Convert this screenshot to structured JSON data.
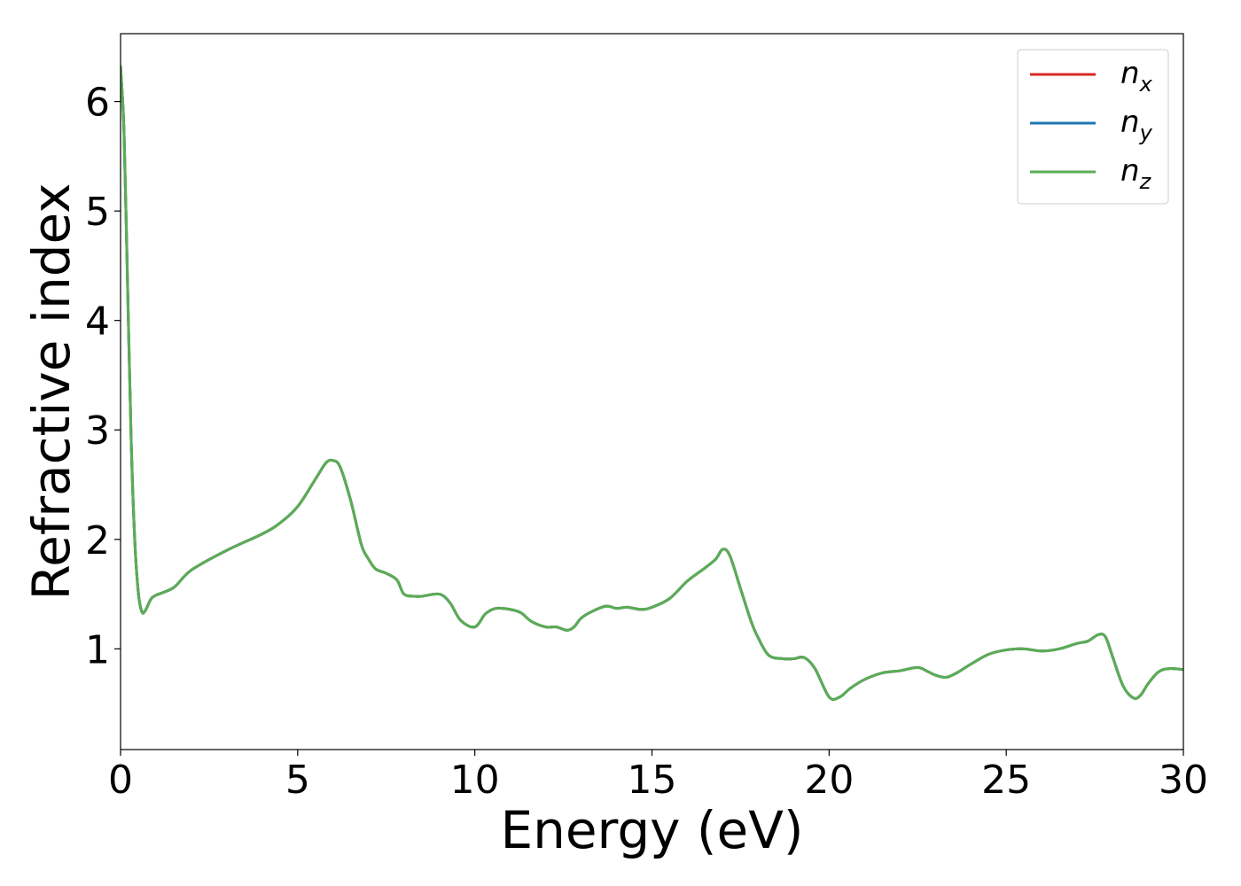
{
  "chart_data": {
    "type": "line",
    "title": "",
    "xlabel": "Energy (eV)",
    "ylabel": "Refractive index",
    "xlim": [
      0,
      30
    ],
    "ylim": [
      0.08,
      6.62
    ],
    "xticks": [
      0,
      5,
      10,
      15,
      20,
      25,
      30
    ],
    "yticks": [
      1,
      2,
      3,
      4,
      5,
      6
    ],
    "grid": false,
    "legend_position": "top-right",
    "series": [
      {
        "name": "n_x",
        "label_main": "n",
        "label_sub": "x",
        "color": "#d62728",
        "x": [
          0,
          0.1,
          0.2,
          0.3,
          0.4,
          0.5,
          0.6,
          0.7,
          0.85,
          1.0,
          1.5,
          2.0,
          3.0,
          4.0,
          4.5,
          5.0,
          5.5,
          5.8,
          6.0,
          6.2,
          6.5,
          6.8,
          7.0,
          7.2,
          7.5,
          7.8,
          8.0,
          8.3,
          8.5,
          9.0,
          9.3,
          9.6,
          10.0,
          10.3,
          10.6,
          11.0,
          11.3,
          11.6,
          12.0,
          12.3,
          12.6,
          12.8,
          13.0,
          13.3,
          13.7,
          14.0,
          14.3,
          14.7,
          15.0,
          15.5,
          16.0,
          16.5,
          16.8,
          17.0,
          17.2,
          17.5,
          17.8,
          18.0,
          18.3,
          18.7,
          19.0,
          19.3,
          19.6,
          20.0,
          20.3,
          20.6,
          21.0,
          21.5,
          22.0,
          22.5,
          22.8,
          23.0,
          23.3,
          23.6,
          24.0,
          24.5,
          25.0,
          25.5,
          26.0,
          26.5,
          27.0,
          27.3,
          27.6,
          27.8,
          28.0,
          28.3,
          28.6,
          28.8,
          29.0,
          29.3,
          29.6,
          30.0
        ],
        "values": [
          6.32,
          5.7,
          4.3,
          2.9,
          2.0,
          1.52,
          1.34,
          1.35,
          1.45,
          1.49,
          1.56,
          1.72,
          1.9,
          2.05,
          2.15,
          2.3,
          2.55,
          2.7,
          2.72,
          2.66,
          2.35,
          1.95,
          1.82,
          1.73,
          1.69,
          1.63,
          1.5,
          1.48,
          1.48,
          1.5,
          1.42,
          1.26,
          1.2,
          1.32,
          1.37,
          1.36,
          1.33,
          1.25,
          1.2,
          1.2,
          1.17,
          1.2,
          1.28,
          1.34,
          1.39,
          1.37,
          1.38,
          1.36,
          1.38,
          1.46,
          1.62,
          1.74,
          1.82,
          1.91,
          1.85,
          1.55,
          1.25,
          1.1,
          0.94,
          0.91,
          0.91,
          0.92,
          0.82,
          0.56,
          0.56,
          0.64,
          0.72,
          0.78,
          0.8,
          0.83,
          0.79,
          0.76,
          0.74,
          0.78,
          0.86,
          0.95,
          0.99,
          1.0,
          0.98,
          1.0,
          1.05,
          1.07,
          1.13,
          1.11,
          0.93,
          0.66,
          0.55,
          0.58,
          0.68,
          0.79,
          0.82,
          0.81
        ]
      },
      {
        "name": "n_y",
        "label_main": "n",
        "label_sub": "y",
        "color": "#1f77b4",
        "x": [
          0,
          0.1,
          0.2,
          0.3,
          0.4,
          0.5,
          0.6,
          0.7,
          0.85,
          1.0,
          1.5,
          2.0,
          3.0,
          4.0,
          4.5,
          5.0,
          5.5,
          5.8,
          6.0,
          6.2,
          6.5,
          6.8,
          7.0,
          7.2,
          7.5,
          7.8,
          8.0,
          8.3,
          8.5,
          9.0,
          9.3,
          9.6,
          10.0,
          10.3,
          10.6,
          11.0,
          11.3,
          11.6,
          12.0,
          12.3,
          12.6,
          12.8,
          13.0,
          13.3,
          13.7,
          14.0,
          14.3,
          14.7,
          15.0,
          15.5,
          16.0,
          16.5,
          16.8,
          17.0,
          17.2,
          17.5,
          17.8,
          18.0,
          18.3,
          18.7,
          19.0,
          19.3,
          19.6,
          20.0,
          20.3,
          20.6,
          21.0,
          21.5,
          22.0,
          22.5,
          22.8,
          23.0,
          23.3,
          23.6,
          24.0,
          24.5,
          25.0,
          25.5,
          26.0,
          26.5,
          27.0,
          27.3,
          27.6,
          27.8,
          28.0,
          28.3,
          28.6,
          28.8,
          29.0,
          29.3,
          29.6,
          30.0
        ],
        "values": [
          6.32,
          5.7,
          4.3,
          2.9,
          2.0,
          1.52,
          1.34,
          1.35,
          1.45,
          1.49,
          1.56,
          1.72,
          1.9,
          2.05,
          2.15,
          2.3,
          2.55,
          2.7,
          2.72,
          2.66,
          2.35,
          1.95,
          1.82,
          1.73,
          1.69,
          1.63,
          1.5,
          1.48,
          1.48,
          1.5,
          1.42,
          1.26,
          1.2,
          1.32,
          1.37,
          1.36,
          1.33,
          1.25,
          1.2,
          1.2,
          1.17,
          1.2,
          1.28,
          1.34,
          1.39,
          1.37,
          1.38,
          1.36,
          1.38,
          1.46,
          1.62,
          1.74,
          1.82,
          1.91,
          1.85,
          1.55,
          1.25,
          1.1,
          0.94,
          0.91,
          0.91,
          0.92,
          0.82,
          0.56,
          0.56,
          0.64,
          0.72,
          0.78,
          0.8,
          0.83,
          0.79,
          0.76,
          0.74,
          0.78,
          0.86,
          0.95,
          0.99,
          1.0,
          0.98,
          1.0,
          1.05,
          1.07,
          1.13,
          1.11,
          0.93,
          0.66,
          0.55,
          0.58,
          0.68,
          0.79,
          0.82,
          0.81
        ]
      },
      {
        "name": "n_z",
        "label_main": "n",
        "label_sub": "z",
        "color": "#5aad54",
        "x": [
          0,
          0.1,
          0.2,
          0.3,
          0.4,
          0.5,
          0.6,
          0.7,
          0.85,
          1.0,
          1.5,
          2.0,
          3.0,
          4.0,
          4.5,
          5.0,
          5.5,
          5.8,
          6.0,
          6.2,
          6.5,
          6.8,
          7.0,
          7.2,
          7.5,
          7.8,
          8.0,
          8.3,
          8.5,
          9.0,
          9.3,
          9.6,
          10.0,
          10.3,
          10.6,
          11.0,
          11.3,
          11.6,
          12.0,
          12.3,
          12.6,
          12.8,
          13.0,
          13.3,
          13.7,
          14.0,
          14.3,
          14.7,
          15.0,
          15.5,
          16.0,
          16.5,
          16.8,
          17.0,
          17.2,
          17.5,
          17.8,
          18.0,
          18.3,
          18.7,
          19.0,
          19.3,
          19.6,
          20.0,
          20.3,
          20.6,
          21.0,
          21.5,
          22.0,
          22.5,
          22.8,
          23.0,
          23.3,
          23.6,
          24.0,
          24.5,
          25.0,
          25.5,
          26.0,
          26.5,
          27.0,
          27.3,
          27.6,
          27.8,
          28.0,
          28.3,
          28.6,
          28.8,
          29.0,
          29.3,
          29.6,
          30.0
        ],
        "values": [
          6.32,
          5.7,
          4.3,
          2.9,
          2.0,
          1.52,
          1.34,
          1.35,
          1.45,
          1.49,
          1.56,
          1.72,
          1.9,
          2.05,
          2.15,
          2.3,
          2.55,
          2.7,
          2.72,
          2.66,
          2.35,
          1.95,
          1.82,
          1.73,
          1.69,
          1.63,
          1.5,
          1.48,
          1.48,
          1.5,
          1.42,
          1.26,
          1.2,
          1.32,
          1.37,
          1.36,
          1.33,
          1.25,
          1.2,
          1.2,
          1.17,
          1.2,
          1.28,
          1.34,
          1.39,
          1.37,
          1.38,
          1.36,
          1.38,
          1.46,
          1.62,
          1.74,
          1.82,
          1.91,
          1.85,
          1.55,
          1.25,
          1.1,
          0.94,
          0.91,
          0.91,
          0.92,
          0.82,
          0.56,
          0.56,
          0.64,
          0.72,
          0.78,
          0.8,
          0.83,
          0.79,
          0.76,
          0.74,
          0.78,
          0.86,
          0.95,
          0.99,
          1.0,
          0.98,
          1.0,
          1.05,
          1.07,
          1.13,
          1.11,
          0.93,
          0.66,
          0.55,
          0.58,
          0.68,
          0.79,
          0.82,
          0.81
        ]
      }
    ]
  }
}
